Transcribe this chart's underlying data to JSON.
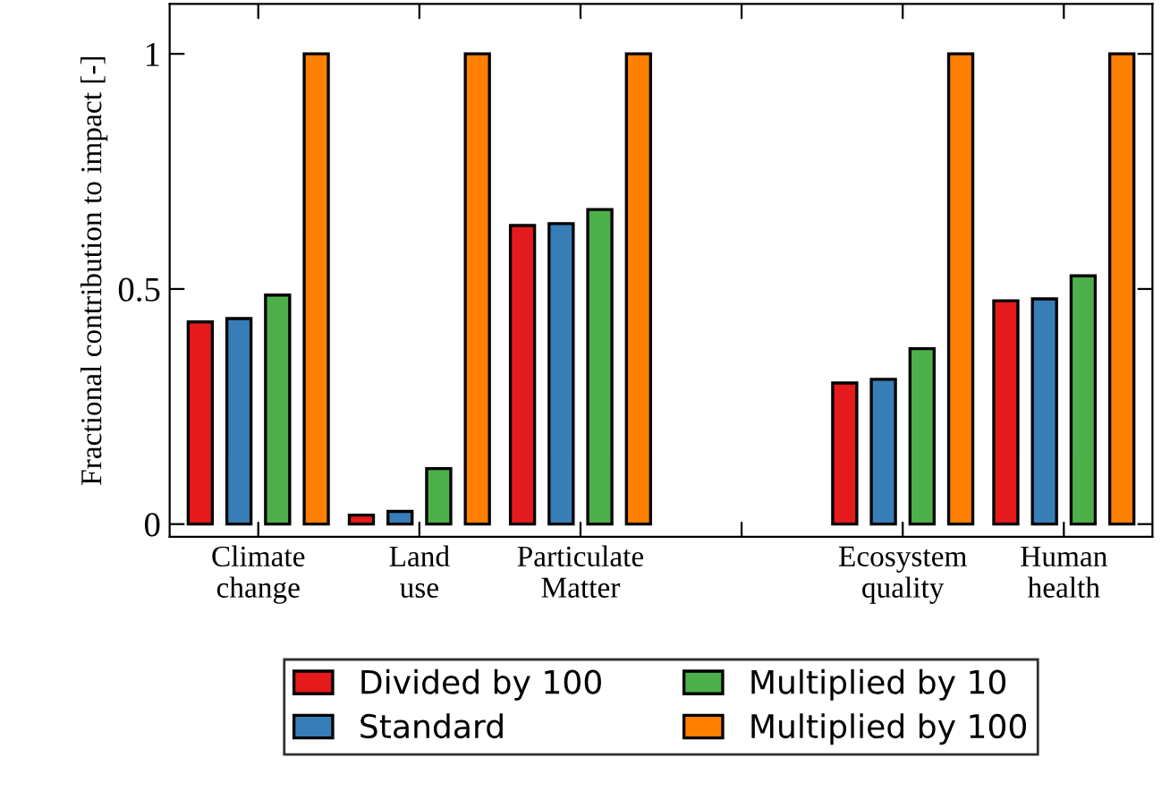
{
  "chart_data": {
    "type": "bar",
    "ylabel": "Fractional contribution to impact [-]",
    "categories": [
      "Climate\nchange",
      "Land\nuse",
      "Particulate\nMatter",
      null,
      "Ecosystem\nquality",
      "Human\nhealth"
    ],
    "series": [
      {
        "name": "Divided by 100",
        "color": "#e41a1c",
        "values": [
          0.43,
          0.019,
          0.635,
          null,
          0.3,
          0.475
        ]
      },
      {
        "name": "Standard",
        "color": "#377eb8",
        "values": [
          0.437,
          0.027,
          0.639,
          null,
          0.308,
          0.479
        ]
      },
      {
        "name": "Multiplied by 10",
        "color": "#4daf4a",
        "values": [
          0.487,
          0.118,
          0.669,
          null,
          0.373,
          0.528
        ]
      },
      {
        "name": "Multiplied by 100",
        "color": "#ff7f00",
        "values": [
          1,
          1,
          1,
          null,
          1,
          1
        ]
      }
    ],
    "ylim": [
      -0.027,
      1.106
    ],
    "yticks": [
      0,
      0.5,
      1
    ],
    "grid": false,
    "legend": "bottom"
  }
}
